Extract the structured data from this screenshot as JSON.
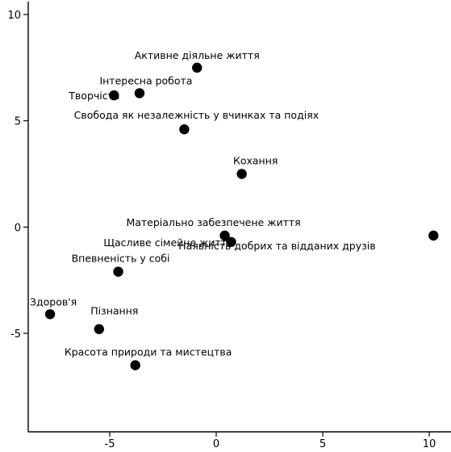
{
  "chart_data": {
    "type": "scatter",
    "title": "",
    "xlabel": "",
    "ylabel": "",
    "xlim": [
      -8.9,
      10.4
    ],
    "ylim": [
      -9.3,
      10.3
    ],
    "x_ticks": [
      -5,
      0,
      5,
      10
    ],
    "x_tick_labels": [
      "-5",
      "0",
      "5",
      "10"
    ],
    "y_ticks": [
      -5,
      0,
      5,
      10
    ],
    "y_tick_labels": [
      "-5",
      "0",
      "5",
      "10"
    ],
    "grid": false,
    "legend": "none",
    "point_color": "#000000",
    "points": [
      {
        "label": "Активне діяльне життя",
        "x": -0.9,
        "y": 7.5
      },
      {
        "label": "Інтересна робота",
        "x": -3.6,
        "y": 6.3
      },
      {
        "label": "Творчість",
        "x": -4.8,
        "y": 6.2
      },
      {
        "label": "Свобода як незалежність у вчинках та подіях",
        "x": -1.5,
        "y": 4.6
      },
      {
        "label": "Кохання",
        "x": 1.2,
        "y": 2.5
      },
      {
        "label": "Матеріально забезпечене життя",
        "x": 0.4,
        "y": -0.4
      },
      {
        "label": "Щасливе сімейне життя",
        "x": 0.7,
        "y": -0.7
      },
      {
        "label": "Наявність добрих та відданих друзів",
        "x": 10.2,
        "y": -0.4
      },
      {
        "label": "Впевненість у собі",
        "x": -4.6,
        "y": -2.1
      },
      {
        "label": "Здоров'я",
        "x": -7.8,
        "y": -4.1
      },
      {
        "label": "Пізнання",
        "x": -5.5,
        "y": -4.8
      },
      {
        "label": "Красота природи та мистецтва",
        "x": -3.8,
        "y": -6.5
      }
    ]
  }
}
